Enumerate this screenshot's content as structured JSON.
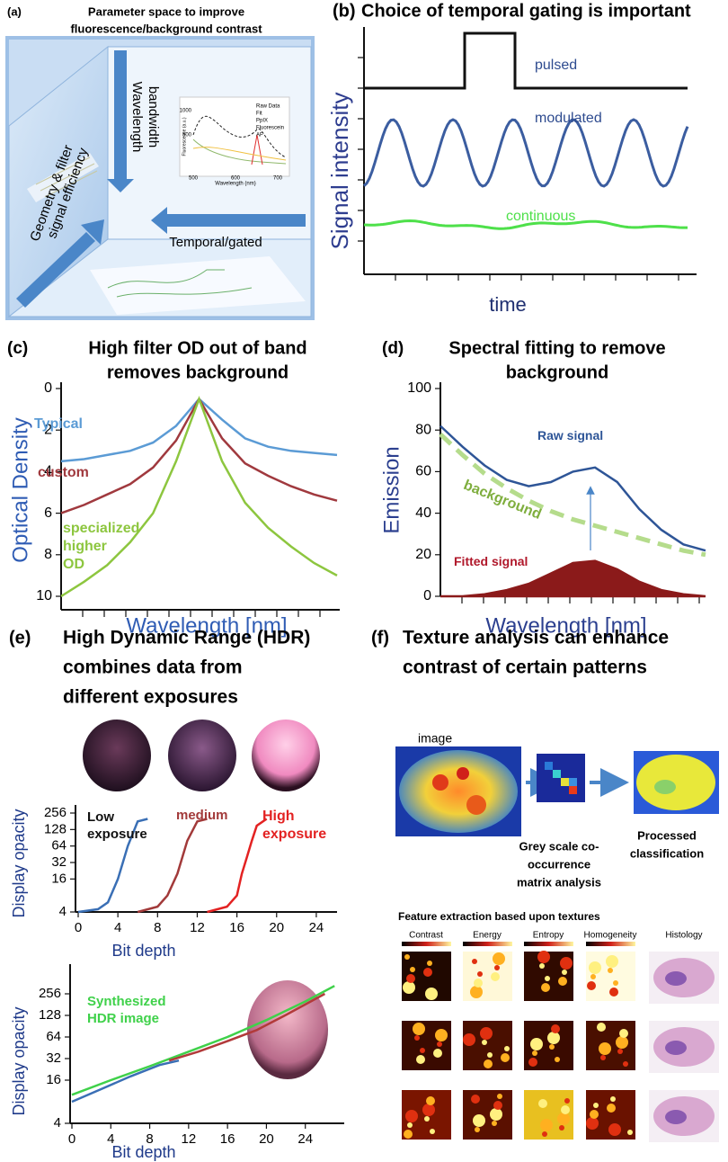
{
  "panel_a": {
    "label": "(a)",
    "title": [
      "Parameter space to improve",
      "fluorescence/background contrast"
    ],
    "axis_wavelength": [
      "Wavelength",
      "bandwidth"
    ],
    "axis_geometry": [
      "Geometry & filter",
      "signal efficiency"
    ],
    "axis_temporal": "Temporal/gated",
    "inset_legend": [
      "Raw Data",
      "Fit",
      "PpIX",
      "Fluorescein",
      "AF"
    ],
    "inset_xlabel": "Wavelength (nm)",
    "inset_ylabel": "Fluorescence (a.u.)",
    "inset_xticks": [
      500,
      600,
      700
    ],
    "inset_yticks": [
      1000,
      500
    ]
  },
  "panel_b": {
    "label": "(b)",
    "title": "Choice of temporal gating is important",
    "ylabel": "Signal intensity",
    "xlabel": "time",
    "curves": [
      "pulsed",
      "modulated",
      "continuous"
    ]
  },
  "chart_data": [
    {
      "type": "line",
      "panel_label": "(c)",
      "title": [
        "High filter OD out of band",
        "removes background"
      ],
      "xlabel": "Wavelength  [nm]",
      "ylabel": "Optical Density",
      "categories": [
        null,
        null,
        null,
        null,
        null,
        null,
        null,
        null,
        null,
        null,
        null,
        null,
        null
      ],
      "ylim": [
        10,
        0
      ],
      "yticks": [
        0,
        2,
        4,
        6,
        8,
        10
      ],
      "series": [
        {
          "name": "Typical",
          "color": "#5b9bd5",
          "values": [
            3.5,
            3.4,
            3.2,
            3.0,
            2.6,
            1.8,
            0.5,
            1.5,
            2.4,
            2.8,
            3.0,
            3.1,
            3.2
          ]
        },
        {
          "name": "custom",
          "color": "#a0393e",
          "values": [
            6.0,
            5.6,
            5.1,
            4.6,
            3.8,
            2.5,
            0.5,
            2.4,
            3.6,
            4.2,
            4.7,
            5.1,
            5.4
          ]
        },
        {
          "name": "specialized higher OD",
          "color": "#8dc63f",
          "values": [
            10,
            9.3,
            8.5,
            7.4,
            6.0,
            3.5,
            0.5,
            3.5,
            5.5,
            6.7,
            7.6,
            8.4,
            9.0
          ]
        }
      ]
    },
    {
      "type": "line",
      "panel_label": "(d)",
      "title": [
        "Spectral fitting to remove",
        "background"
      ],
      "xlabel": "Wavelength  [nm]",
      "ylabel": "Emission",
      "categories": [
        null,
        null,
        null,
        null,
        null,
        null,
        null,
        null,
        null,
        null,
        null,
        null,
        null
      ],
      "ylim": [
        0,
        100
      ],
      "yticks": [
        0,
        20,
        40,
        60,
        80,
        100
      ],
      "series": [
        {
          "name": "Raw signal",
          "color": "#2e5597",
          "values": [
            82,
            72,
            63,
            56,
            53,
            55,
            60,
            62,
            55,
            42,
            32,
            25,
            22
          ]
        },
        {
          "name": "background",
          "color": "#b5dc8c",
          "label_color": "#7fae3e",
          "dashed": true,
          "values": [
            78,
            68,
            59,
            52,
            46,
            41,
            37,
            34,
            31,
            28,
            25,
            22,
            20
          ]
        },
        {
          "name": "Fitted signal",
          "color": "#8b1a1a",
          "label_color": "#b0182b",
          "fill": true,
          "values": [
            0,
            0,
            1,
            3,
            6,
            11,
            16,
            17,
            13,
            7,
            3,
            1,
            0
          ]
        }
      ]
    },
    {
      "type": "line",
      "xlabel": "Bit depth",
      "ylabel": "Display opacity",
      "log_y": true,
      "xlim": [
        0,
        26
      ],
      "xticks": [
        0,
        4,
        8,
        12,
        16,
        20,
        24
      ],
      "ylim": [
        4,
        256
      ],
      "yticks": [
        4,
        16,
        32,
        64,
        128,
        256
      ],
      "series": [
        {
          "name": "Low exposure",
          "color": "#3a6fb5",
          "label_color": "#111111",
          "x": [
            0,
            2,
            3,
            4,
            4.5,
            5,
            6,
            7
          ],
          "values": [
            4,
            4.5,
            6,
            16,
            32,
            64,
            180,
            200
          ]
        },
        {
          "name": "medium",
          "color": "#a23a3a",
          "x": [
            6,
            8,
            9,
            10,
            10.5,
            11,
            12,
            13
          ],
          "values": [
            4,
            5,
            8,
            20,
            40,
            80,
            180,
            200
          ]
        },
        {
          "name": "High exposure",
          "color": "#e32222",
          "x": [
            13,
            15,
            16,
            16.5,
            17,
            17.5,
            18,
            19
          ],
          "values": [
            4,
            5,
            8,
            20,
            40,
            80,
            150,
            200
          ]
        }
      ]
    },
    {
      "type": "line",
      "xlabel": "Bit depth",
      "ylabel": "Display opacity",
      "log_y": true,
      "xlim": [
        0,
        28
      ],
      "xticks": [
        0,
        4,
        8,
        12,
        16,
        20,
        24
      ],
      "ylim": [
        4,
        512
      ],
      "yticks": [
        4,
        16,
        32,
        64,
        128,
        256
      ],
      "series": [
        {
          "name": "Synthesized HDR image",
          "color": "#3fd14a",
          "x": [
            0,
            4,
            8,
            12,
            16,
            20,
            24,
            27
          ],
          "values": [
            10,
            16,
            25,
            40,
            64,
            110,
            200,
            330
          ]
        },
        {
          "color": "#3a6fb5",
          "x": [
            0,
            3,
            6,
            9,
            11
          ],
          "values": [
            8,
            12,
            18,
            26,
            30
          ]
        },
        {
          "color": "#b23a3a",
          "x": [
            10,
            13,
            16,
            19,
            22,
            26
          ],
          "values": [
            30,
            40,
            56,
            80,
            130,
            256
          ]
        }
      ]
    }
  ],
  "panel_e": {
    "label": "(e)",
    "title": [
      "High Dynamic Range (HDR)",
      "combines data from",
      "different exposures"
    ]
  },
  "panel_f": {
    "label": "(f)",
    "title": [
      "Texture analysis can enhance",
      "contrast of certain patterns"
    ],
    "image_label": "image",
    "matrix_label": [
      "Grey scale co-",
      "occurrence",
      "matrix analysis"
    ],
    "processed_label": [
      "Processed",
      "classification"
    ],
    "feature_title": "Feature extraction based upon textures",
    "features": [
      "Contrast",
      "Energy",
      "Entropy",
      "Homogeneity",
      "Histology"
    ]
  }
}
